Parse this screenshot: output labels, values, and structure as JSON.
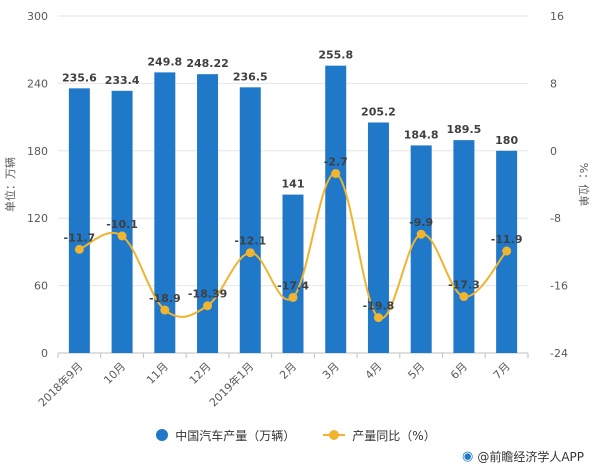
{
  "chart_data": {
    "type": "bar+line",
    "categories": [
      "2018年9月",
      "10月",
      "11月",
      "12月",
      "2019年1月",
      "2月",
      "3月",
      "4月",
      "5月",
      "6月",
      "7月"
    ],
    "series": [
      {
        "name": "中国汽车产量（万辆）",
        "type": "bar",
        "axis": "left",
        "values": [
          235.6,
          233.4,
          249.8,
          248.22,
          236.5,
          141,
          255.8,
          205.2,
          184.8,
          189.5,
          180
        ],
        "labels": [
          "235.6",
          "233.4",
          "249.8",
          "248.22",
          "236.5",
          "141",
          "255.8",
          "205.2",
          "184.8",
          "189.5",
          "180"
        ]
      },
      {
        "name": "产量同比（%）",
        "type": "line",
        "axis": "right",
        "values": [
          -11.7,
          -10.1,
          -18.9,
          -18.39,
          -12.1,
          -17.4,
          -2.7,
          -19.8,
          -9.9,
          -17.3,
          -11.9
        ],
        "labels": [
          "-11.7",
          "-10.1",
          "-18.9",
          "-18.39",
          "-12.1",
          "-17.4",
          "-2.7",
          "-19.8",
          "-9.9",
          "-17.3",
          "-11.9"
        ]
      }
    ],
    "ylabel": "单位：万辆",
    "y2label": "%：位单",
    "ylim": [
      0,
      300
    ],
    "y2lim": [
      -24,
      16
    ],
    "yticks": [
      "0",
      "60",
      "120",
      "180",
      "240",
      "300"
    ],
    "y2ticks": [
      "-24",
      "-16",
      "-8",
      "0",
      "8",
      "16"
    ],
    "colors": {
      "bar": "#1f78c8",
      "line": "#f0b431"
    },
    "grid": true,
    "legend": "bottom"
  },
  "legend": {
    "bar_label": "中国汽车产量（万辆）",
    "line_label": "产量同比（%）"
  },
  "source": "@前瞻经济学人APP"
}
